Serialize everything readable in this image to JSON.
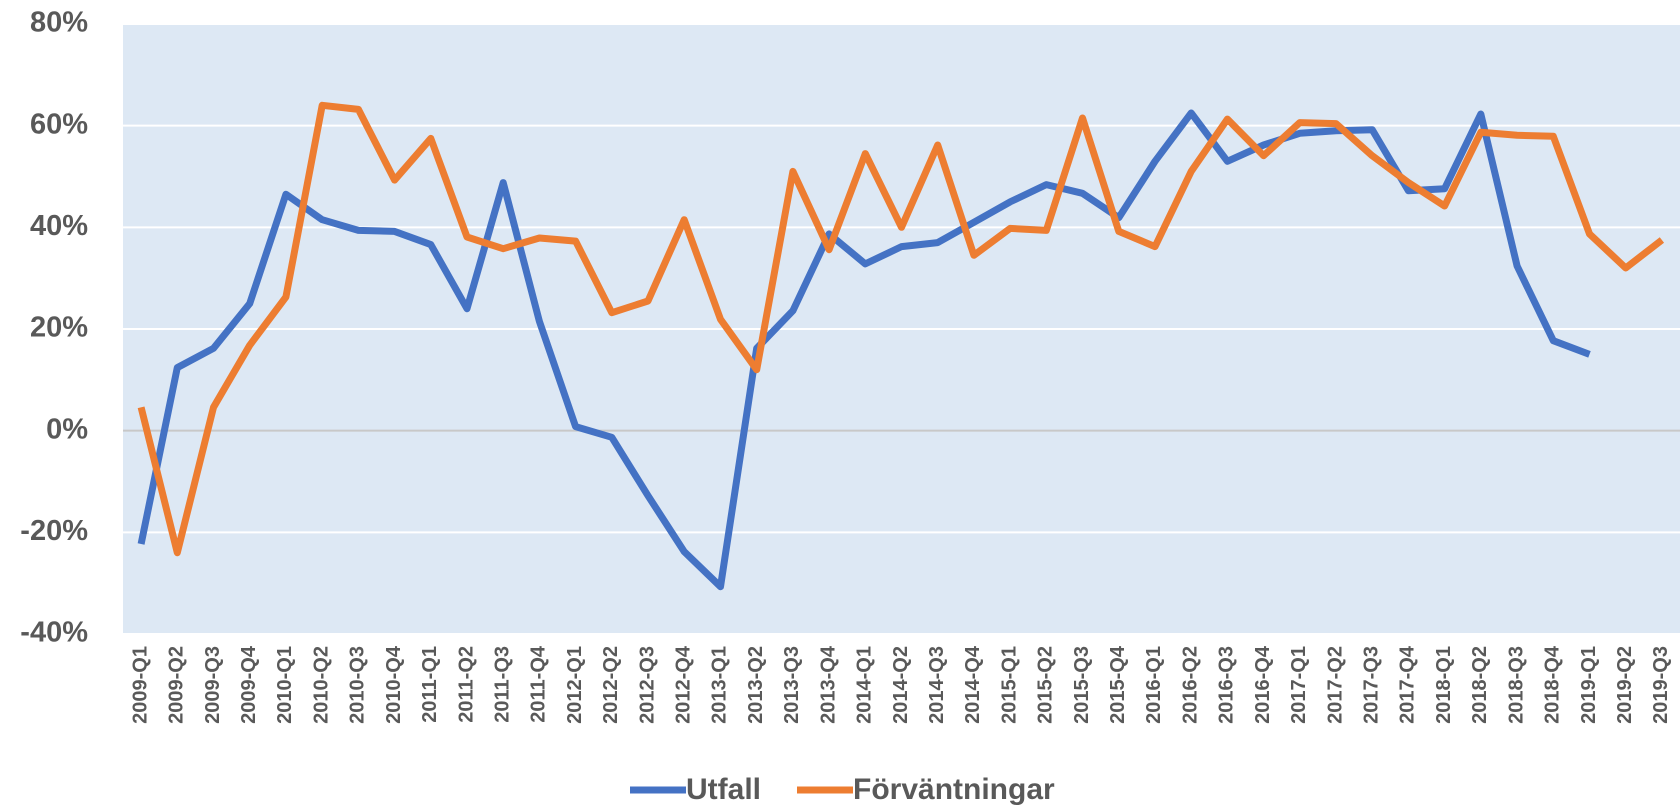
{
  "chart_data": {
    "type": "line",
    "categories": [
      "2009-Q1",
      "2009-Q2",
      "2009-Q3",
      "2009-Q4",
      "2010-Q1",
      "2010-Q2",
      "2010-Q3",
      "2010-Q4",
      "2011-Q1",
      "2011-Q2",
      "2011-Q3",
      "2011-Q4",
      "2012-Q1",
      "2012-Q2",
      "2012-Q3",
      "2012-Q4",
      "2013-Q1",
      "2013-Q2",
      "2013-Q3",
      "2013-Q4",
      "2014-Q1",
      "2014-Q2",
      "2014-Q3",
      "2014-Q4",
      "2015-Q1",
      "2015-Q2",
      "2015-Q3",
      "2015-Q4",
      "2016-Q1",
      "2016-Q2",
      "2016-Q3",
      "2016-Q4",
      "2017-Q1",
      "2017-Q2",
      "2017-Q3",
      "2017-Q4",
      "2018-Q1",
      "2018-Q2",
      "2018-Q3",
      "2018-Q4",
      "2019-Q1",
      "2019-Q2",
      "2019-Q3"
    ],
    "series": [
      {
        "name": "Utfall",
        "color": "#4472c4",
        "values": [
          -22.3,
          12.4,
          16.2,
          25,
          46.5,
          41.5,
          39.4,
          39.2,
          36.6,
          24,
          48.8,
          21.5,
          0.8,
          -1.3,
          -12.8,
          -23.8,
          -30.7,
          16.2,
          23.6,
          38.7,
          32.8,
          36.2,
          37,
          41,
          45,
          48.4,
          46.7,
          41.9,
          53,
          62.5,
          53,
          56.2,
          58.5,
          59,
          59.2,
          47.2,
          47.6,
          62.3,
          32.4,
          17.7,
          15,
          null,
          null
        ]
      },
      {
        "name": "Förväntningar",
        "color": "#ed7d31",
        "values": [
          4.6,
          -24,
          4.6,
          16.8,
          26.3,
          64,
          63.2,
          49.3,
          57.5,
          38.1,
          35.8,
          37.9,
          37.3,
          23.2,
          25.5,
          41.5,
          21.9,
          12,
          51,
          35.6,
          54.5,
          40,
          56.2,
          34.5,
          39.8,
          39.4,
          61.5,
          39.2,
          36.2,
          51,
          61.3,
          54.1,
          60.6,
          60.4,
          54.1,
          48.8,
          44.2,
          58.7,
          58.1,
          57.9,
          38.7,
          32,
          37.5
        ]
      }
    ],
    "ylim": [
      -40,
      80
    ],
    "yticks": [
      {
        "value": -40,
        "label": "-40%"
      },
      {
        "value": -20,
        "label": "-20%"
      },
      {
        "value": 0,
        "label": "0%"
      },
      {
        "value": 20,
        "label": "20%"
      },
      {
        "value": 40,
        "label": "40%"
      },
      {
        "value": 60,
        "label": "60%"
      },
      {
        "value": 80,
        "label": "80%"
      }
    ],
    "grid": true
  }
}
